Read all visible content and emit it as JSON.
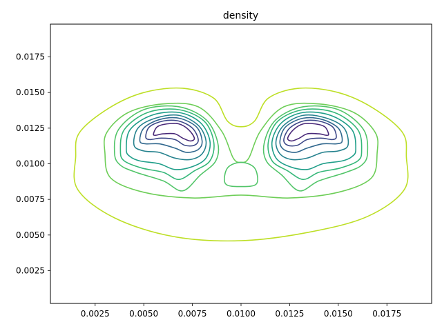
{
  "chart_data": {
    "type": "contour",
    "title": "density",
    "xlabel": "",
    "ylabel": "",
    "xlim": [
      0.0002,
      0.0198
    ],
    "ylim": [
      0.0002,
      0.0198
    ],
    "xticks": [
      0.0025,
      0.005,
      0.0075,
      0.01,
      0.0125,
      0.015,
      0.0175
    ],
    "xtick_labels": [
      "0.0025",
      "0.0050",
      "0.0075",
      "0.0100",
      "0.0125",
      "0.0150",
      "0.0175"
    ],
    "yticks": [
      0.0025,
      0.005,
      0.0075,
      0.01,
      0.0125,
      0.015,
      0.0175
    ],
    "ytick_labels": [
      "0.0025",
      "0.0050",
      "0.0075",
      "0.0100",
      "0.0125",
      "0.0150",
      "0.0175"
    ],
    "grid": false,
    "colormap": "viridis",
    "contour_levels": [
      {
        "color": "#bddf26",
        "shape": "outer-envelope",
        "path": [
          [
            0.0015,
            0.0105
          ],
          [
            0.0017,
            0.0122
          ],
          [
            0.0032,
            0.0139
          ],
          [
            0.005,
            0.015
          ],
          [
            0.007,
            0.0153
          ],
          [
            0.0086,
            0.0146
          ],
          [
            0.0093,
            0.013
          ],
          [
            0.01,
            0.0126
          ],
          [
            0.0107,
            0.013
          ],
          [
            0.0114,
            0.0146
          ],
          [
            0.013,
            0.0153
          ],
          [
            0.015,
            0.015
          ],
          [
            0.0168,
            0.0139
          ],
          [
            0.0183,
            0.0122
          ],
          [
            0.0185,
            0.0105
          ],
          [
            0.0184,
            0.0082
          ],
          [
            0.0165,
            0.0063
          ],
          [
            0.0135,
            0.0052
          ],
          [
            0.01,
            0.0046
          ],
          [
            0.0065,
            0.0049
          ],
          [
            0.0035,
            0.0062
          ],
          [
            0.0016,
            0.0082
          ],
          [
            0.0015,
            0.0105
          ]
        ]
      },
      {
        "color": "#6ece58",
        "shape": "outer-lobes",
        "path": [
          [
            0.003,
            0.0108
          ],
          [
            0.0031,
            0.0122
          ],
          [
            0.0042,
            0.0136
          ],
          [
            0.006,
            0.0142
          ],
          [
            0.0078,
            0.014
          ],
          [
            0.009,
            0.0123
          ],
          [
            0.0096,
            0.0104
          ],
          [
            0.01,
            0.0101
          ],
          [
            0.0104,
            0.0104
          ],
          [
            0.011,
            0.0123
          ],
          [
            0.0122,
            0.014
          ],
          [
            0.014,
            0.0142
          ],
          [
            0.0158,
            0.0136
          ],
          [
            0.0169,
            0.0122
          ],
          [
            0.017,
            0.0108
          ],
          [
            0.0167,
            0.009
          ],
          [
            0.015,
            0.008
          ],
          [
            0.0125,
            0.0076
          ],
          [
            0.01,
            0.0078
          ],
          [
            0.0075,
            0.0076
          ],
          [
            0.005,
            0.008
          ],
          [
            0.0033,
            0.009
          ],
          [
            0.003,
            0.0108
          ]
        ]
      },
      {
        "color": "#52c569",
        "shape": "lobe-pair",
        "paths": [
          [
            [
              0.0035,
              0.0107
            ],
            [
              0.0037,
              0.0124
            ],
            [
              0.005,
              0.0138
            ],
            [
              0.0068,
              0.014
            ],
            [
              0.0082,
              0.0131
            ],
            [
              0.0088,
              0.0115
            ],
            [
              0.0087,
              0.0102
            ],
            [
              0.0079,
              0.0092
            ],
            [
              0.007,
              0.0081
            ],
            [
              0.006,
              0.0088
            ],
            [
              0.0046,
              0.0094
            ],
            [
              0.0038,
              0.0099
            ],
            [
              0.0035,
              0.0107
            ]
          ],
          [
            [
              0.0165,
              0.0107
            ],
            [
              0.0163,
              0.0124
            ],
            [
              0.015,
              0.0138
            ],
            [
              0.0132,
              0.014
            ],
            [
              0.0118,
              0.0131
            ],
            [
              0.0112,
              0.0115
            ],
            [
              0.0113,
              0.0102
            ],
            [
              0.0121,
              0.0092
            ],
            [
              0.013,
              0.0081
            ],
            [
              0.014,
              0.0088
            ],
            [
              0.0154,
              0.0094
            ],
            [
              0.0162,
              0.0099
            ],
            [
              0.0165,
              0.0107
            ]
          ]
        ],
        "extra_path": [
          [
            0.0093,
            0.0097
          ],
          [
            0.0092,
            0.0086
          ],
          [
            0.01,
            0.0084
          ],
          [
            0.0108,
            0.0086
          ],
          [
            0.0107,
            0.0097
          ],
          [
            0.01,
            0.0101
          ],
          [
            0.0093,
            0.0097
          ]
        ]
      },
      {
        "color": "#35b779",
        "shape": "lobe-pair",
        "paths": [
          [
            [
              0.0038,
              0.0109
            ],
            [
              0.004,
              0.0124
            ],
            [
              0.0052,
              0.0136
            ],
            [
              0.0068,
              0.0138
            ],
            [
              0.0081,
              0.013
            ],
            [
              0.0086,
              0.0115
            ],
            [
              0.0084,
              0.0102
            ],
            [
              0.0076,
              0.0095
            ],
            [
              0.0068,
              0.0089
            ],
            [
              0.006,
              0.0094
            ],
            [
              0.0049,
              0.0097
            ],
            [
              0.004,
              0.0102
            ],
            [
              0.0038,
              0.0109
            ]
          ],
          [
            [
              0.0162,
              0.0109
            ],
            [
              0.016,
              0.0124
            ],
            [
              0.0148,
              0.0136
            ],
            [
              0.0132,
              0.0138
            ],
            [
              0.0119,
              0.013
            ],
            [
              0.0114,
              0.0115
            ],
            [
              0.0116,
              0.0102
            ],
            [
              0.0124,
              0.0095
            ],
            [
              0.0132,
              0.0089
            ],
            [
              0.014,
              0.0094
            ],
            [
              0.0151,
              0.0097
            ],
            [
              0.016,
              0.0102
            ],
            [
              0.0162,
              0.0109
            ]
          ]
        ]
      },
      {
        "color": "#1f9e89",
        "shape": "lobe-pair",
        "paths": [
          [
            [
              0.0041,
              0.011
            ],
            [
              0.0043,
              0.0124
            ],
            [
              0.0054,
              0.0134
            ],
            [
              0.0068,
              0.0136
            ],
            [
              0.0079,
              0.0129
            ],
            [
              0.0084,
              0.0116
            ],
            [
              0.0082,
              0.0104
            ],
            [
              0.0075,
              0.0098
            ],
            [
              0.0066,
              0.0096
            ],
            [
              0.0058,
              0.01
            ],
            [
              0.0048,
              0.0102
            ],
            [
              0.0043,
              0.0105
            ],
            [
              0.0041,
              0.011
            ]
          ],
          [
            [
              0.0159,
              0.011
            ],
            [
              0.0157,
              0.0124
            ],
            [
              0.0146,
              0.0134
            ],
            [
              0.0132,
              0.0136
            ],
            [
              0.0121,
              0.0129
            ],
            [
              0.0116,
              0.0116
            ],
            [
              0.0118,
              0.0104
            ],
            [
              0.0125,
              0.0098
            ],
            [
              0.0134,
              0.0096
            ],
            [
              0.0142,
              0.01
            ],
            [
              0.0152,
              0.0102
            ],
            [
              0.0157,
              0.0105
            ],
            [
              0.0159,
              0.011
            ]
          ]
        ]
      },
      {
        "color": "#26828e",
        "shape": "lobe-pair",
        "paths": [
          [
            [
              0.0045,
              0.0113
            ],
            [
              0.0047,
              0.0125
            ],
            [
              0.0056,
              0.0132
            ],
            [
              0.0068,
              0.0134
            ],
            [
              0.0078,
              0.0127
            ],
            [
              0.0082,
              0.0116
            ],
            [
              0.008,
              0.0107
            ],
            [
              0.0074,
              0.0103
            ],
            [
              0.0066,
              0.0104
            ],
            [
              0.0058,
              0.0108
            ],
            [
              0.005,
              0.0109
            ],
            [
              0.0045,
              0.0113
            ]
          ],
          [
            [
              0.0155,
              0.0113
            ],
            [
              0.0153,
              0.0125
            ],
            [
              0.0144,
              0.0132
            ],
            [
              0.0132,
              0.0134
            ],
            [
              0.0122,
              0.0127
            ],
            [
              0.0118,
              0.0116
            ],
            [
              0.012,
              0.0107
            ],
            [
              0.0126,
              0.0103
            ],
            [
              0.0134,
              0.0104
            ],
            [
              0.0142,
              0.0108
            ],
            [
              0.015,
              0.0109
            ],
            [
              0.0155,
              0.0113
            ]
          ]
        ]
      },
      {
        "color": "#31688e",
        "shape": "lobe-pair",
        "paths": [
          [
            [
              0.0048,
              0.0116
            ],
            [
              0.005,
              0.0125
            ],
            [
              0.0058,
              0.0131
            ],
            [
              0.0068,
              0.0132
            ],
            [
              0.0077,
              0.0126
            ],
            [
              0.008,
              0.0116
            ],
            [
              0.0078,
              0.011
            ],
            [
              0.0072,
              0.0108
            ],
            [
              0.0066,
              0.0111
            ],
            [
              0.0058,
              0.0114
            ],
            [
              0.0051,
              0.0114
            ],
            [
              0.0048,
              0.0116
            ]
          ],
          [
            [
              0.0152,
              0.0116
            ],
            [
              0.015,
              0.0125
            ],
            [
              0.0142,
              0.0131
            ],
            [
              0.0132,
              0.0132
            ],
            [
              0.0123,
              0.0126
            ],
            [
              0.012,
              0.0116
            ],
            [
              0.0122,
              0.011
            ],
            [
              0.0128,
              0.0108
            ],
            [
              0.0134,
              0.0111
            ],
            [
              0.0142,
              0.0114
            ],
            [
              0.0149,
              0.0114
            ],
            [
              0.0152,
              0.0116
            ]
          ]
        ]
      },
      {
        "color": "#3e4989",
        "shape": "lobe-pair",
        "paths": [
          [
            [
              0.0051,
              0.0119
            ],
            [
              0.0053,
              0.0126
            ],
            [
              0.006,
              0.013
            ],
            [
              0.0068,
              0.013
            ],
            [
              0.0075,
              0.0125
            ],
            [
              0.0078,
              0.0117
            ],
            [
              0.0076,
              0.0113
            ],
            [
              0.0071,
              0.0113
            ],
            [
              0.0066,
              0.0117
            ],
            [
              0.0059,
              0.0118
            ],
            [
              0.0053,
              0.0117
            ],
            [
              0.0051,
              0.0119
            ]
          ],
          [
            [
              0.0149,
              0.0119
            ],
            [
              0.0147,
              0.0126
            ],
            [
              0.014,
              0.013
            ],
            [
              0.0132,
              0.013
            ],
            [
              0.0125,
              0.0125
            ],
            [
              0.0122,
              0.0117
            ],
            [
              0.0124,
              0.0113
            ],
            [
              0.0129,
              0.0113
            ],
            [
              0.0134,
              0.0117
            ],
            [
              0.0141,
              0.0118
            ],
            [
              0.0147,
              0.0117
            ],
            [
              0.0149,
              0.0119
            ]
          ]
        ]
      },
      {
        "color": "#482878",
        "shape": "lobe-pair",
        "paths": [
          [
            [
              0.0055,
              0.0121
            ],
            [
              0.0057,
              0.0126
            ],
            [
              0.0062,
              0.0128
            ],
            [
              0.0068,
              0.0128
            ],
            [
              0.0073,
              0.0124
            ],
            [
              0.0076,
              0.0118
            ],
            [
              0.0074,
              0.0116
            ],
            [
              0.007,
              0.0118
            ],
            [
              0.0066,
              0.0121
            ],
            [
              0.006,
              0.0121
            ],
            [
              0.0056,
              0.012
            ],
            [
              0.0055,
              0.0121
            ]
          ],
          [
            [
              0.0145,
              0.0121
            ],
            [
              0.0143,
              0.0126
            ],
            [
              0.0138,
              0.0128
            ],
            [
              0.0132,
              0.0128
            ],
            [
              0.0127,
              0.0124
            ],
            [
              0.0124,
              0.0118
            ],
            [
              0.0126,
              0.0116
            ],
            [
              0.013,
              0.0118
            ],
            [
              0.0134,
              0.0121
            ],
            [
              0.014,
              0.0121
            ],
            [
              0.0144,
              0.012
            ],
            [
              0.0145,
              0.0121
            ]
          ]
        ]
      }
    ]
  }
}
